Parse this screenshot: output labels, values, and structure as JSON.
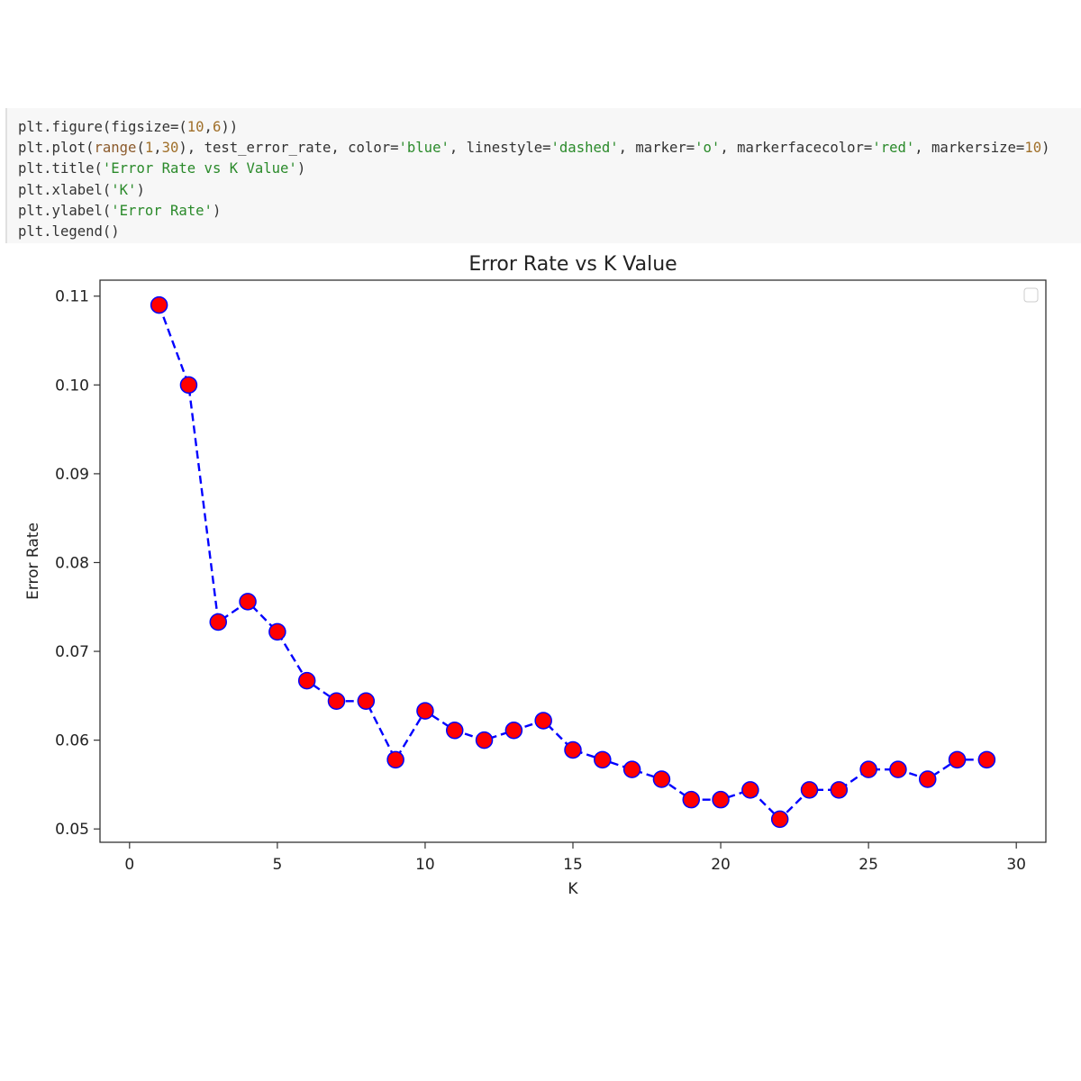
{
  "code": {
    "lines": [
      [
        {
          "t": "plt.figure(figsize=(",
          "c": ""
        },
        {
          "t": "10",
          "c": "num"
        },
        {
          "t": ",",
          "c": ""
        },
        {
          "t": "6",
          "c": "num"
        },
        {
          "t": "))",
          "c": ""
        }
      ],
      [
        {
          "t": "plt.plot(",
          "c": ""
        },
        {
          "t": "range",
          "c": "fn"
        },
        {
          "t": "(",
          "c": ""
        },
        {
          "t": "1",
          "c": "num"
        },
        {
          "t": ",",
          "c": ""
        },
        {
          "t": "30",
          "c": "num"
        },
        {
          "t": "), test_error_rate, color=",
          "c": ""
        },
        {
          "t": "'blue'",
          "c": "str"
        },
        {
          "t": ", linestyle=",
          "c": ""
        },
        {
          "t": "'dashed'",
          "c": "str"
        },
        {
          "t": ", marker=",
          "c": ""
        },
        {
          "t": "'o'",
          "c": "str"
        },
        {
          "t": ", markerfacecolor=",
          "c": ""
        },
        {
          "t": "'red'",
          "c": "str"
        },
        {
          "t": ", markersize=",
          "c": ""
        },
        {
          "t": "10",
          "c": "num"
        },
        {
          "t": ")",
          "c": ""
        }
      ],
      [
        {
          "t": "plt.title(",
          "c": ""
        },
        {
          "t": "'Error Rate vs K Value'",
          "c": "str"
        },
        {
          "t": ")",
          "c": ""
        }
      ],
      [
        {
          "t": "plt.xlabel(",
          "c": ""
        },
        {
          "t": "'K'",
          "c": "str"
        },
        {
          "t": ")",
          "c": ""
        }
      ],
      [
        {
          "t": "plt.ylabel(",
          "c": ""
        },
        {
          "t": "'Error Rate'",
          "c": "str"
        },
        {
          "t": ")",
          "c": ""
        }
      ],
      [
        {
          "t": "plt.legend()",
          "c": ""
        }
      ]
    ]
  },
  "chart_data": {
    "type": "line",
    "title": "Error Rate vs K Value",
    "xlabel": "K",
    "ylabel": "Error Rate",
    "xlim": [
      -1,
      31
    ],
    "ylim": [
      0.0485,
      0.1118
    ],
    "xticks": [
      0,
      5,
      10,
      15,
      20,
      25,
      30
    ],
    "yticks": [
      0.05,
      0.06,
      0.07,
      0.08,
      0.09,
      0.1,
      0.11
    ],
    "ytick_labels": [
      "0.05",
      "0.06",
      "0.07",
      "0.08",
      "0.09",
      "0.10",
      "0.11"
    ],
    "grid": false,
    "legend": "top-right, empty",
    "line_color": "#0000ff",
    "line_style": "dashed",
    "marker_face": "#ff0000",
    "marker_edge": "#0000ff",
    "series": [
      {
        "x": [
          1,
          2,
          3,
          4,
          5,
          6,
          7,
          8,
          9,
          10,
          11,
          12,
          13,
          14,
          15,
          16,
          17,
          18,
          19,
          20,
          21,
          22,
          23,
          24,
          25,
          26,
          27,
          28,
          29
        ],
        "values": [
          0.109,
          0.1,
          0.0733,
          0.0756,
          0.0722,
          0.0667,
          0.0644,
          0.0644,
          0.0578,
          0.0633,
          0.0611,
          0.06,
          0.0611,
          0.0622,
          0.0589,
          0.0578,
          0.0567,
          0.0556,
          0.0533,
          0.0533,
          0.0544,
          0.0511,
          0.0544,
          0.0544,
          0.0567,
          0.0567,
          0.0556,
          0.0578,
          0.0578
        ]
      }
    ]
  }
}
